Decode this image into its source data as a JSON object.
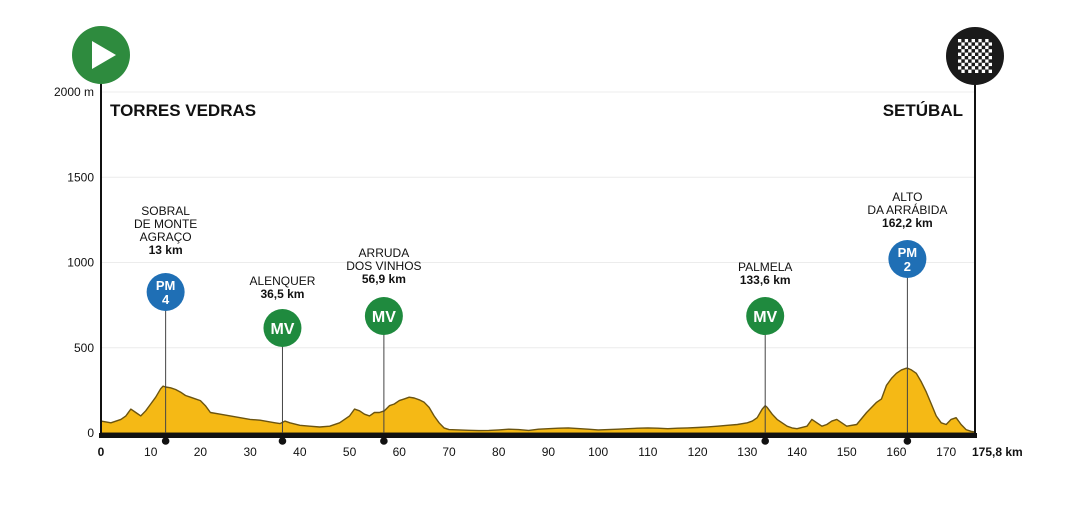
{
  "chart_data": {
    "type": "area",
    "start_town": "TORRES VEDRAS",
    "finish_town": "SETÚBAL",
    "x_ticks": [
      "0",
      "10",
      "20",
      "30",
      "40",
      "50",
      "60",
      "70",
      "80",
      "90",
      "100",
      "110",
      "120",
      "130",
      "140",
      "150",
      "160",
      "170"
    ],
    "x_end_label": "175,8 km",
    "y_ticks": [
      {
        "value": 2000,
        "label": "2000 m"
      },
      {
        "value": 1500,
        "label": "1500"
      },
      {
        "value": 1000,
        "label": "1000"
      },
      {
        "value": 500,
        "label": "500"
      },
      {
        "value": 0,
        "label": "0"
      }
    ],
    "xlim": [
      0,
      175.8
    ],
    "ylim": [
      0,
      2000
    ],
    "grid": true,
    "profile": {
      "x": [
        0,
        2,
        4,
        5,
        6,
        7,
        8,
        9,
        10,
        11,
        12,
        12.5,
        13,
        14,
        15,
        16,
        17,
        18,
        19,
        20,
        21,
        22,
        24,
        26,
        28,
        30,
        32,
        34,
        35,
        36,
        37,
        38,
        40,
        42,
        44,
        46,
        48,
        50,
        51,
        52,
        53,
        54,
        55,
        56,
        57,
        58,
        59,
        60,
        61,
        62,
        63,
        64,
        65,
        66,
        67,
        68,
        69,
        70,
        72,
        74,
        76,
        78,
        80,
        82,
        84,
        86,
        88,
        90,
        92,
        94,
        96,
        98,
        100,
        102,
        104,
        106,
        108,
        110,
        112,
        114,
        116,
        118,
        120,
        122,
        124,
        126,
        128,
        130,
        131,
        132,
        133,
        133.6,
        134,
        135,
        136,
        137,
        138,
        139,
        140,
        142,
        143,
        144,
        145,
        146,
        147,
        148,
        150,
        152,
        154,
        155,
        156,
        157,
        158,
        159,
        160,
        161,
        162,
        162.2,
        163,
        164,
        165,
        166,
        167,
        168,
        169,
        170,
        171,
        172,
        173,
        174,
        175,
        175.8
      ],
      "y": [
        70,
        60,
        80,
        100,
        140,
        120,
        100,
        130,
        170,
        210,
        260,
        275,
        270,
        265,
        255,
        240,
        220,
        210,
        200,
        190,
        160,
        120,
        110,
        100,
        90,
        80,
        75,
        65,
        60,
        55,
        70,
        60,
        45,
        40,
        35,
        40,
        60,
        100,
        140,
        130,
        110,
        100,
        120,
        120,
        130,
        160,
        170,
        190,
        200,
        210,
        205,
        195,
        180,
        150,
        100,
        60,
        30,
        20,
        18,
        16,
        14,
        15,
        18,
        22,
        20,
        15,
        22,
        25,
        28,
        30,
        26,
        22,
        18,
        20,
        22,
        25,
        28,
        30,
        28,
        25,
        28,
        30,
        32,
        36,
        40,
        45,
        50,
        60,
        70,
        90,
        140,
        160,
        150,
        110,
        80,
        60,
        40,
        30,
        25,
        40,
        80,
        60,
        40,
        50,
        70,
        80,
        40,
        50,
        120,
        150,
        180,
        200,
        280,
        320,
        350,
        370,
        380,
        380,
        370,
        350,
        300,
        240,
        170,
        100,
        60,
        50,
        80,
        90,
        50,
        20,
        10,
        5
      ],
      "color": "#f5b915"
    },
    "climbs": [
      {
        "name_lines": [
          "SOBRAL",
          "DE MONTE",
          "AGRAÇO"
        ],
        "km_label": "13 km",
        "km": 13,
        "badge": "PM",
        "number": "4",
        "color": "#1f6fb5"
      },
      {
        "name_lines": [
          "ALENQUER"
        ],
        "km_label": "36,5 km",
        "km": 36.5,
        "badge": "MV",
        "number": "",
        "color": "#1f8a3e"
      },
      {
        "name_lines": [
          "ARRUDA",
          "DOS VINHOS"
        ],
        "km_label": "56,9 km",
        "km": 56.9,
        "badge": "MV",
        "number": "",
        "color": "#1f8a3e"
      },
      {
        "name_lines": [
          "PALMELA"
        ],
        "km_label": "133,6 km",
        "km": 133.6,
        "badge": "MV",
        "number": "",
        "color": "#1f8a3e"
      },
      {
        "name_lines": [
          "ALTO",
          "DA ARRÁBIDA"
        ],
        "km_label": "162,2 km",
        "km": 162.2,
        "badge": "PM",
        "number": "2",
        "color": "#1f6fb5"
      }
    ],
    "start_icon": "play-icon",
    "finish_icon": "checkered-flag-icon",
    "start_color": "#2e8b3e",
    "finish_color": "#1a1a1a"
  }
}
